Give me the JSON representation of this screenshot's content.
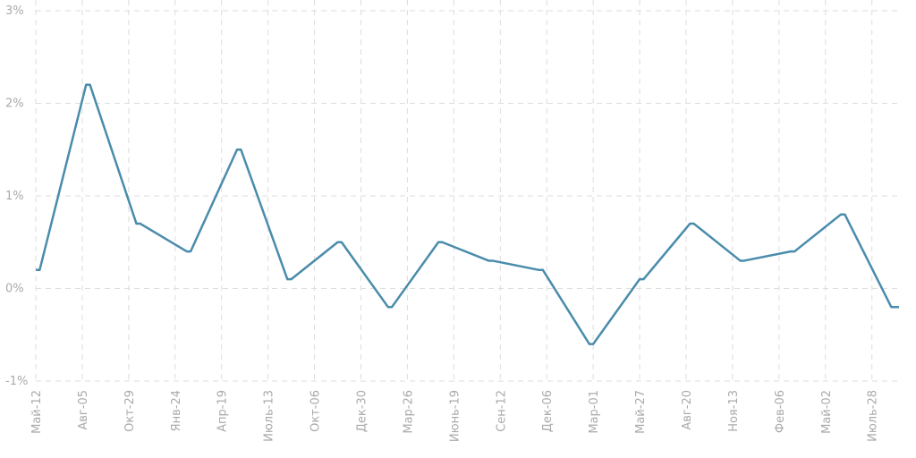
{
  "chart_data": {
    "type": "line",
    "x": [
      0,
      1,
      13,
      14,
      26,
      27,
      39,
      40,
      52,
      53,
      65,
      66,
      78,
      79,
      91,
      92,
      104,
      105,
      117,
      118,
      130,
      131,
      143,
      144,
      156,
      157,
      169,
      170,
      182,
      183,
      195,
      196,
      208,
      209,
      221,
      223
    ],
    "series": [
      {
        "color": "#4a8cab",
        "values": [
          0.2,
          0.2,
          2.2,
          2.2,
          0.7,
          0.7,
          0.4,
          0.4,
          1.5,
          1.5,
          0.1,
          0.1,
          0.5,
          0.5,
          -0.2,
          -0.2,
          0.5,
          0.5,
          0.3,
          0.3,
          0.2,
          0.2,
          -0.6,
          -0.6,
          0.1,
          0.1,
          0.7,
          0.7,
          0.3,
          0.3,
          0.4,
          0.4,
          0.8,
          0.8,
          -0.2,
          -0.2
        ]
      }
    ],
    "xlim": [
      0,
      223
    ],
    "xticks": [
      {
        "value": 0,
        "label": "Май-12"
      },
      {
        "value": 12,
        "label": "Авг-05"
      },
      {
        "value": 24,
        "label": "Окт-29"
      },
      {
        "value": 36,
        "label": "Янв-24"
      },
      {
        "value": 48,
        "label": "Апр-19"
      },
      {
        "value": 60,
        "label": "Июль-13"
      },
      {
        "value": 72,
        "label": "Окт-06"
      },
      {
        "value": 84,
        "label": "Дек-30"
      },
      {
        "value": 96,
        "label": "Мар-26"
      },
      {
        "value": 108,
        "label": "Июнь-19"
      },
      {
        "value": 120,
        "label": "Сен-12"
      },
      {
        "value": 132,
        "label": "Дек-06"
      },
      {
        "value": 144,
        "label": "Мар-01"
      },
      {
        "value": 156,
        "label": "Май-27"
      },
      {
        "value": 168,
        "label": "Авг-20"
      },
      {
        "value": 180,
        "label": "Ноя-13"
      },
      {
        "value": 192,
        "label": "Фев-06"
      },
      {
        "value": 204,
        "label": "Май-02"
      },
      {
        "value": 216,
        "label": "Июль-28"
      }
    ],
    "ylim": [
      -1,
      3
    ],
    "yticks": [
      {
        "value": -1,
        "label": "-1%"
      },
      {
        "value": 0,
        "label": "0%"
      },
      {
        "value": 1,
        "label": "1%"
      },
      {
        "value": 2,
        "label": "2%"
      },
      {
        "value": 3,
        "label": "3%"
      }
    ],
    "grid": true
  }
}
